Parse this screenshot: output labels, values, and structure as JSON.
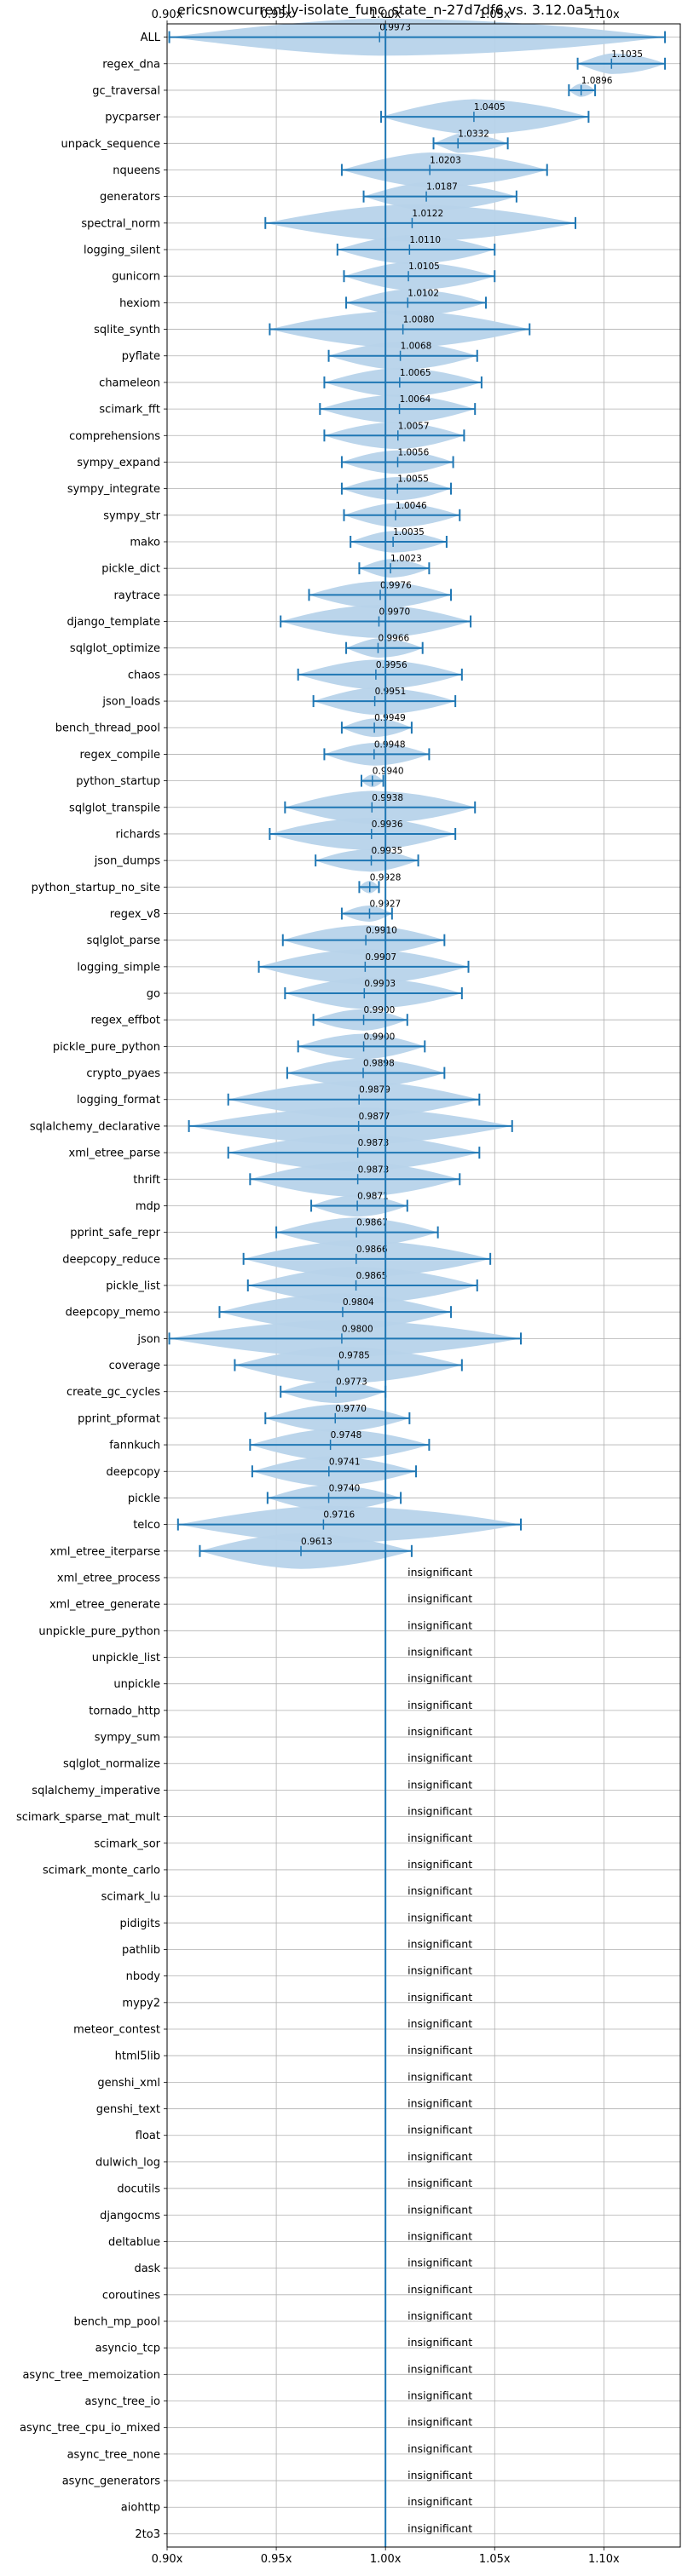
{
  "chart_data": {
    "type": "violin",
    "title": "ericsnowcurrently-isolate_func_state_n-27d7df6 vs. 3.12.0a5+",
    "xlabel": "",
    "ylabel": "",
    "xlim": [
      0.9,
      1.135
    ],
    "x_ticks": [
      0.9,
      0.95,
      1.0,
      1.05,
      1.1
    ],
    "x_tick_labels": [
      "0.90x",
      "0.95x",
      "1.00x",
      "1.05x",
      "1.10x"
    ],
    "reference_line": 1.0,
    "grid": true,
    "insignificant_label": "insignificant",
    "colors": {
      "violin": "#b7d3ea",
      "line": "#1f77b4",
      "grid": "#b0b0b0",
      "ref": "#1f77b4"
    },
    "benchmarks": [
      {
        "name": "ALL",
        "mean": 0.9973,
        "min": 0.901,
        "max": 1.128,
        "label": "0.9973"
      },
      {
        "name": "regex_dna",
        "mean": 1.1035,
        "min": 1.088,
        "max": 1.128,
        "label": "1.1035"
      },
      {
        "name": "gc_traversal",
        "mean": 1.0896,
        "min": 1.084,
        "max": 1.096,
        "label": "1.0896"
      },
      {
        "name": "pycparser",
        "mean": 1.0405,
        "min": 0.998,
        "max": 1.093,
        "label": "1.0405"
      },
      {
        "name": "unpack_sequence",
        "mean": 1.0332,
        "min": 1.022,
        "max": 1.056,
        "label": "1.0332"
      },
      {
        "name": "nqueens",
        "mean": 1.0203,
        "min": 0.98,
        "max": 1.074,
        "label": "1.0203"
      },
      {
        "name": "generators",
        "mean": 1.0187,
        "min": 0.99,
        "max": 1.06,
        "label": "1.0187"
      },
      {
        "name": "spectral_norm",
        "mean": 1.0122,
        "min": 0.945,
        "max": 1.087,
        "label": "1.0122"
      },
      {
        "name": "logging_silent",
        "mean": 1.011,
        "min": 0.978,
        "max": 1.05,
        "label": "1.0110"
      },
      {
        "name": "gunicorn",
        "mean": 1.0105,
        "min": 0.981,
        "max": 1.05,
        "label": "1.0105"
      },
      {
        "name": "hexiom",
        "mean": 1.0102,
        "min": 0.982,
        "max": 1.046,
        "label": "1.0102"
      },
      {
        "name": "sqlite_synth",
        "mean": 1.008,
        "min": 0.947,
        "max": 1.066,
        "label": "1.0080"
      },
      {
        "name": "pyflate",
        "mean": 1.0068,
        "min": 0.974,
        "max": 1.042,
        "label": "1.0068"
      },
      {
        "name": "chameleon",
        "mean": 1.0065,
        "min": 0.972,
        "max": 1.044,
        "label": "1.0065"
      },
      {
        "name": "scimark_fft",
        "mean": 1.0064,
        "min": 0.97,
        "max": 1.041,
        "label": "1.0064"
      },
      {
        "name": "comprehensions",
        "mean": 1.0057,
        "min": 0.972,
        "max": 1.036,
        "label": "1.0057"
      },
      {
        "name": "sympy_expand",
        "mean": 1.0056,
        "min": 0.98,
        "max": 1.031,
        "label": "1.0056"
      },
      {
        "name": "sympy_integrate",
        "mean": 1.0055,
        "min": 0.98,
        "max": 1.03,
        "label": "1.0055"
      },
      {
        "name": "sympy_str",
        "mean": 1.0046,
        "min": 0.981,
        "max": 1.034,
        "label": "1.0046"
      },
      {
        "name": "mako",
        "mean": 1.0035,
        "min": 0.984,
        "max": 1.028,
        "label": "1.0035"
      },
      {
        "name": "pickle_dict",
        "mean": 1.0023,
        "min": 0.988,
        "max": 1.02,
        "label": "1.0023"
      },
      {
        "name": "raytrace",
        "mean": 0.9976,
        "min": 0.965,
        "max": 1.03,
        "label": "0.9976"
      },
      {
        "name": "django_template",
        "mean": 0.997,
        "min": 0.952,
        "max": 1.039,
        "label": "0.9970"
      },
      {
        "name": "sqlglot_optimize",
        "mean": 0.9966,
        "min": 0.982,
        "max": 1.017,
        "label": "0.9966"
      },
      {
        "name": "chaos",
        "mean": 0.9956,
        "min": 0.96,
        "max": 1.035,
        "label": "0.9956"
      },
      {
        "name": "json_loads",
        "mean": 0.9951,
        "min": 0.967,
        "max": 1.032,
        "label": "0.9951"
      },
      {
        "name": "bench_thread_pool",
        "mean": 0.9949,
        "min": 0.98,
        "max": 1.012,
        "label": "0.9949"
      },
      {
        "name": "regex_compile",
        "mean": 0.9948,
        "min": 0.972,
        "max": 1.02,
        "label": "0.9948"
      },
      {
        "name": "python_startup",
        "mean": 0.994,
        "min": 0.989,
        "max": 0.999,
        "label": "0.9940"
      },
      {
        "name": "sqlglot_transpile",
        "mean": 0.9938,
        "min": 0.954,
        "max": 1.041,
        "label": "0.9938"
      },
      {
        "name": "richards",
        "mean": 0.9936,
        "min": 0.947,
        "max": 1.032,
        "label": "0.9936"
      },
      {
        "name": "json_dumps",
        "mean": 0.9935,
        "min": 0.968,
        "max": 1.015,
        "label": "0.9935"
      },
      {
        "name": "python_startup_no_site",
        "mean": 0.9928,
        "min": 0.988,
        "max": 0.997,
        "label": "0.9928"
      },
      {
        "name": "regex_v8",
        "mean": 0.9927,
        "min": 0.98,
        "max": 1.003,
        "label": "0.9927"
      },
      {
        "name": "sqlglot_parse",
        "mean": 0.991,
        "min": 0.953,
        "max": 1.027,
        "label": "0.9910"
      },
      {
        "name": "logging_simple",
        "mean": 0.9907,
        "min": 0.942,
        "max": 1.038,
        "label": "0.9907"
      },
      {
        "name": "go",
        "mean": 0.9903,
        "min": 0.954,
        "max": 1.035,
        "label": "0.9903"
      },
      {
        "name": "regex_effbot",
        "mean": 0.99,
        "min": 0.967,
        "max": 1.01,
        "label": "0.9900"
      },
      {
        "name": "pickle_pure_python",
        "mean": 0.99,
        "min": 0.96,
        "max": 1.018,
        "label": "0.9900"
      },
      {
        "name": "crypto_pyaes",
        "mean": 0.9898,
        "min": 0.955,
        "max": 1.027,
        "label": "0.9898"
      },
      {
        "name": "logging_format",
        "mean": 0.9879,
        "min": 0.928,
        "max": 1.043,
        "label": "0.9879"
      },
      {
        "name": "sqlalchemy_declarative",
        "mean": 0.9877,
        "min": 0.91,
        "max": 1.058,
        "label": "0.9877"
      },
      {
        "name": "xml_etree_parse",
        "mean": 0.9873,
        "min": 0.928,
        "max": 1.043,
        "label": "0.9873"
      },
      {
        "name": "thrift",
        "mean": 0.9873,
        "min": 0.938,
        "max": 1.034,
        "label": "0.9873"
      },
      {
        "name": "mdp",
        "mean": 0.9871,
        "min": 0.966,
        "max": 1.01,
        "label": "0.9871"
      },
      {
        "name": "pprint_safe_repr",
        "mean": 0.9867,
        "min": 0.95,
        "max": 1.024,
        "label": "0.9867"
      },
      {
        "name": "deepcopy_reduce",
        "mean": 0.9866,
        "min": 0.935,
        "max": 1.048,
        "label": "0.9866"
      },
      {
        "name": "pickle_list",
        "mean": 0.9865,
        "min": 0.937,
        "max": 1.042,
        "label": "0.9865"
      },
      {
        "name": "deepcopy_memo",
        "mean": 0.9804,
        "min": 0.924,
        "max": 1.03,
        "label": "0.9804"
      },
      {
        "name": "json",
        "mean": 0.98,
        "min": 0.901,
        "max": 1.062,
        "label": "0.9800"
      },
      {
        "name": "coverage",
        "mean": 0.9785,
        "min": 0.931,
        "max": 1.035,
        "label": "0.9785"
      },
      {
        "name": "create_gc_cycles",
        "mean": 0.9773,
        "min": 0.952,
        "max": 1.0,
        "label": "0.9773"
      },
      {
        "name": "pprint_pformat",
        "mean": 0.977,
        "min": 0.945,
        "max": 1.011,
        "label": "0.9770"
      },
      {
        "name": "fannkuch",
        "mean": 0.9748,
        "min": 0.938,
        "max": 1.02,
        "label": "0.9748"
      },
      {
        "name": "deepcopy",
        "mean": 0.9741,
        "min": 0.939,
        "max": 1.014,
        "label": "0.9741"
      },
      {
        "name": "pickle",
        "mean": 0.974,
        "min": 0.946,
        "max": 1.007,
        "label": "0.9740"
      },
      {
        "name": "telco",
        "mean": 0.9716,
        "min": 0.905,
        "max": 1.062,
        "label": "0.9716"
      },
      {
        "name": "xml_etree_iterparse",
        "mean": 0.9613,
        "min": 0.915,
        "max": 1.012,
        "label": "0.9613"
      },
      {
        "name": "xml_etree_process",
        "insignificant": true
      },
      {
        "name": "xml_etree_generate",
        "insignificant": true
      },
      {
        "name": "unpickle_pure_python",
        "insignificant": true
      },
      {
        "name": "unpickle_list",
        "insignificant": true
      },
      {
        "name": "unpickle",
        "insignificant": true
      },
      {
        "name": "tornado_http",
        "insignificant": true
      },
      {
        "name": "sympy_sum",
        "insignificant": true
      },
      {
        "name": "sqlglot_normalize",
        "insignificant": true
      },
      {
        "name": "sqlalchemy_imperative",
        "insignificant": true
      },
      {
        "name": "scimark_sparse_mat_mult",
        "insignificant": true
      },
      {
        "name": "scimark_sor",
        "insignificant": true
      },
      {
        "name": "scimark_monte_carlo",
        "insignificant": true
      },
      {
        "name": "scimark_lu",
        "insignificant": true
      },
      {
        "name": "pidigits",
        "insignificant": true
      },
      {
        "name": "pathlib",
        "insignificant": true
      },
      {
        "name": "nbody",
        "insignificant": true
      },
      {
        "name": "mypy2",
        "insignificant": true
      },
      {
        "name": "meteor_contest",
        "insignificant": true
      },
      {
        "name": "html5lib",
        "insignificant": true
      },
      {
        "name": "genshi_xml",
        "insignificant": true
      },
      {
        "name": "genshi_text",
        "insignificant": true
      },
      {
        "name": "float",
        "insignificant": true
      },
      {
        "name": "dulwich_log",
        "insignificant": true
      },
      {
        "name": "docutils",
        "insignificant": true
      },
      {
        "name": "djangocms",
        "insignificant": true
      },
      {
        "name": "deltablue",
        "insignificant": true
      },
      {
        "name": "dask",
        "insignificant": true
      },
      {
        "name": "coroutines",
        "insignificant": true
      },
      {
        "name": "bench_mp_pool",
        "insignificant": true
      },
      {
        "name": "asyncio_tcp",
        "insignificant": true
      },
      {
        "name": "async_tree_memoization",
        "insignificant": true
      },
      {
        "name": "async_tree_io",
        "insignificant": true
      },
      {
        "name": "async_tree_cpu_io_mixed",
        "insignificant": true
      },
      {
        "name": "async_tree_none",
        "insignificant": true
      },
      {
        "name": "async_generators",
        "insignificant": true
      },
      {
        "name": "aiohttp",
        "insignificant": true
      },
      {
        "name": "2to3",
        "insignificant": true
      }
    ]
  }
}
